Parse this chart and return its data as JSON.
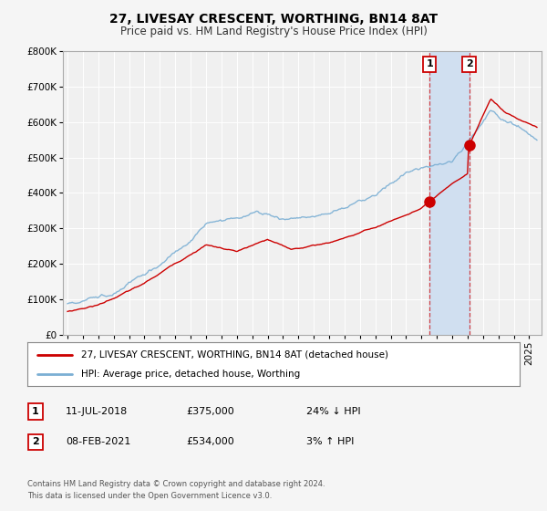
{
  "title": "27, LIVESAY CRESCENT, WORTHING, BN14 8AT",
  "subtitle": "Price paid vs. HM Land Registry's House Price Index (HPI)",
  "ylim": [
    0,
    800000
  ],
  "yticks": [
    0,
    100000,
    200000,
    300000,
    400000,
    500000,
    600000,
    700000,
    800000
  ],
  "ytick_labels": [
    "£0",
    "£100K",
    "£200K",
    "£300K",
    "£400K",
    "£500K",
    "£600K",
    "£700K",
    "£800K"
  ],
  "hpi_color": "#7bafd4",
  "price_color": "#cc0000",
  "background_color": "#f5f5f5",
  "plot_bg_color": "#f0f0f0",
  "grid_color": "#ffffff",
  "shade_color": "#d0dff0",
  "event1_date_num": 2018.53,
  "event2_date_num": 2021.1,
  "event1_price": 375000,
  "event2_price": 534000,
  "event1_label": "1",
  "event2_label": "2",
  "legend_entries": [
    {
      "label": "27, LIVESAY CRESCENT, WORTHING, BN14 8AT (detached house)",
      "color": "#cc0000"
    },
    {
      "label": "HPI: Average price, detached house, Worthing",
      "color": "#7bafd4"
    }
  ],
  "table_rows": [
    {
      "num": "1",
      "date": "11-JUL-2018",
      "price": "£375,000",
      "hpi": "24% ↓ HPI"
    },
    {
      "num": "2",
      "date": "08-FEB-2021",
      "price": "£534,000",
      "hpi": "3% ↑ HPI"
    }
  ],
  "footer": "Contains HM Land Registry data © Crown copyright and database right 2024.\nThis data is licensed under the Open Government Licence v3.0.",
  "xlim_start": 1994.7,
  "xlim_end": 2025.8,
  "xtick_years": [
    1995,
    1996,
    1997,
    1998,
    1999,
    2000,
    2001,
    2002,
    2003,
    2004,
    2005,
    2006,
    2007,
    2008,
    2009,
    2010,
    2011,
    2012,
    2013,
    2014,
    2015,
    2016,
    2017,
    2018,
    2019,
    2020,
    2021,
    2022,
    2023,
    2024,
    2025
  ]
}
